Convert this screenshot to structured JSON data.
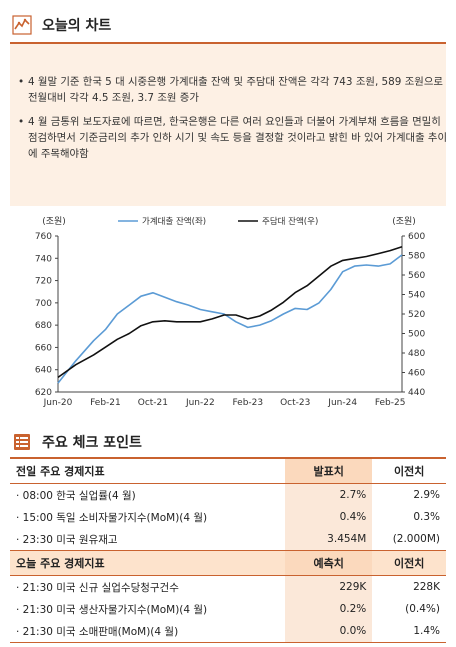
{
  "header": {
    "title": "오늘의 차트"
  },
  "summary": {
    "bullets": [
      "4 월말 기준 한국 5 대 시중은행 가계대출 잔액 및 주담대 잔액은 각각 743 조원, 589 조원으로 전월대비 각각 4.5 조원, 3.7 조원 증가",
      "4 월 금통위 보도자료에 따르면, 한국은행은 다른 여러 요인들과 더불어 가계부채 흐름을 면밀히 점검하면서 기준금리의 추가 인하 시기 및 속도 등을 결정할 것이라고 밝힌 바 있어 가계대출 추이에 주목해야함"
    ]
  },
  "chart_data": {
    "type": "line",
    "left_unit": "(조원)",
    "right_unit": "(조원)",
    "x": [
      "2020-06",
      "2020-09",
      "2020-12",
      "2021-02",
      "2021-04",
      "2021-06",
      "2021-08",
      "2021-10",
      "2021-12",
      "2022-02",
      "2022-04",
      "2022-06",
      "2022-08",
      "2022-10",
      "2022-12",
      "2023-02",
      "2023-04",
      "2023-06",
      "2023-08",
      "2023-10",
      "2023-12",
      "2024-02",
      "2024-04",
      "2024-06",
      "2024-08",
      "2024-10",
      "2024-12",
      "2025-02",
      "2025-04"
    ],
    "x_ticks": [
      "Jun-20",
      "Feb-21",
      "Oct-21",
      "Jun-22",
      "Feb-23",
      "Oct-23",
      "Jun-24",
      "Feb-25"
    ],
    "series": [
      {
        "name": "가계대출 잔액(좌)",
        "axis": "left",
        "color": "#5b9bd5",
        "values": [
          628,
          648,
          666,
          676,
          690,
          698,
          706,
          709,
          705,
          701,
          698,
          694,
          692,
          690,
          683,
          678,
          680,
          684,
          690,
          695,
          694,
          700,
          712,
          728,
          733,
          734,
          733,
          735,
          743
        ]
      },
      {
        "name": "주담대 잔액(우)",
        "axis": "right",
        "color": "#111111",
        "values": [
          455,
          468,
          478,
          486,
          494,
          500,
          508,
          512,
          513,
          512,
          512,
          512,
          515,
          519,
          519,
          515,
          518,
          524,
          532,
          542,
          549,
          559,
          569,
          575,
          577,
          579,
          582,
          585,
          589
        ]
      }
    ],
    "ylim_left": [
      620,
      760
    ],
    "yticks_left": [
      620,
      640,
      660,
      680,
      700,
      720,
      740,
      760
    ],
    "ylim_right": [
      440,
      600
    ],
    "yticks_right": [
      440,
      460,
      480,
      500,
      520,
      540,
      560,
      580,
      600
    ]
  },
  "checkpoints": {
    "title": "주요 체크 포인트",
    "prev": {
      "header": "전일 주요 경제지표",
      "col1": "발표치",
      "col2": "이전치",
      "rows": [
        {
          "label": "· 08:00 한국 실업률(4 월)",
          "v1": "2.7%",
          "v2": "2.9%"
        },
        {
          "label": "· 15:00 독일 소비자물가지수(MoM)(4 월)",
          "v1": "0.4%",
          "v2": "0.3%"
        },
        {
          "label": "· 23:30 미국 원유재고",
          "v1": "3.454M",
          "v2": "(2.000M)"
        }
      ]
    },
    "today": {
      "header": "오늘 주요 경제지표",
      "col1": "예측치",
      "col2": "이전치",
      "rows": [
        {
          "label": "· 21:30 미국 신규 실업수당청구건수",
          "v1": "229K",
          "v2": "228K"
        },
        {
          "label": "· 21:30 미국 생산자물가지수(MoM)(4 월)",
          "v1": "0.2%",
          "v2": "(0.4%)"
        },
        {
          "label": "· 21:30 미국 소매판매(MoM)(4 월)",
          "v1": "0.0%",
          "v2": "1.4%"
        }
      ]
    }
  }
}
